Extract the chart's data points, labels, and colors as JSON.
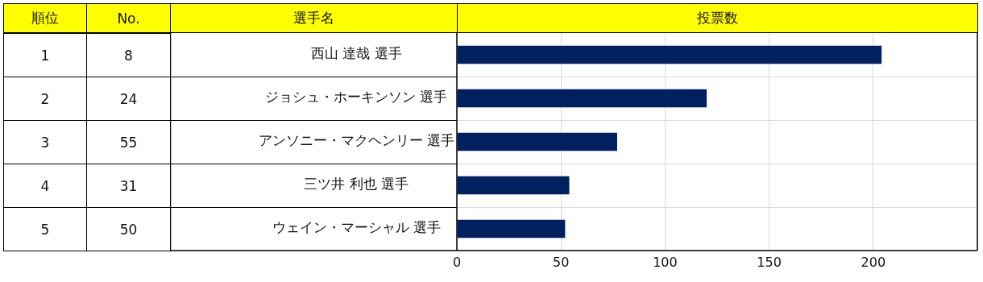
{
  "chart_data": {
    "type": "bar",
    "orientation": "horizontal",
    "xlabel": "投票数",
    "categories": [
      "西山 達哉 選手",
      "ジョシュ・ホーキンソン 選手",
      "アンソニー・マクヘンリー 選手",
      "三ツ井 利也 選手",
      "ウェイン・マーシャル 選手"
    ],
    "values": [
      204,
      120,
      77,
      54,
      52
    ],
    "color": "#002060",
    "xlim": [
      0,
      250
    ],
    "xticks": [
      0,
      50,
      100,
      150,
      200
    ],
    "grid": "x",
    "legend": false,
    "annotations": [
      "順位",
      "No.",
      "選手名",
      "1",
      "8",
      "2",
      "24",
      "3",
      "55",
      "4",
      "31",
      "5",
      "50"
    ]
  }
}
